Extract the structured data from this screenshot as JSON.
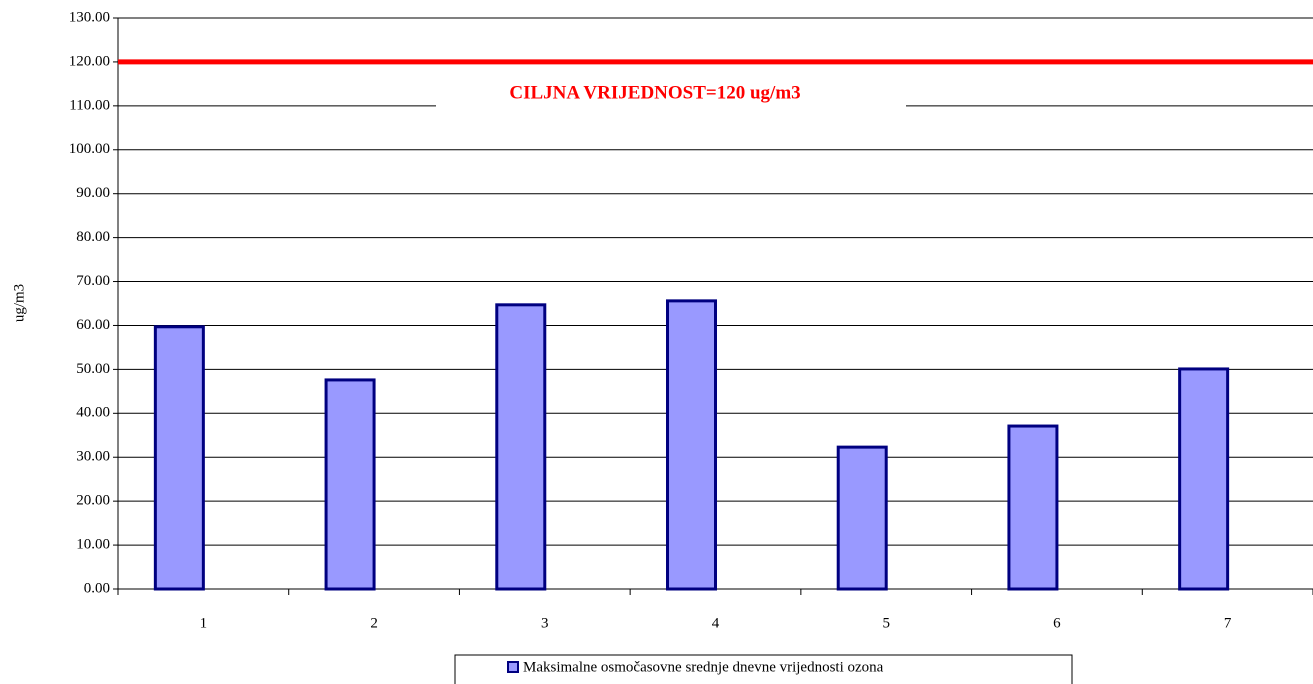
{
  "chart_data": {
    "type": "bar",
    "y_label": "ug/m3",
    "categories": [
      "1",
      "2",
      "3",
      "4",
      "5",
      "6",
      "7"
    ],
    "series": [
      {
        "name": "Maksimalne osmočasovne srednje dnevne vrijednosti ozona",
        "color": "#9999ff",
        "edge_color": "#000080",
        "values": [
          59.7,
          47.6,
          64.7,
          65.6,
          32.3,
          37.1,
          50.1
        ]
      }
    ],
    "target": {
      "value": 120,
      "label": "CILJNA VRIJEDNOST=120 ug/m3",
      "color": "#ff0000"
    },
    "ylim": [
      0,
      130
    ],
    "yticks": [
      {
        "value": 0,
        "label": "0.00"
      },
      {
        "value": 10,
        "label": "10.00"
      },
      {
        "value": 20,
        "label": "20.00"
      },
      {
        "value": 30,
        "label": "30.00"
      },
      {
        "value": 40,
        "label": "40.00"
      },
      {
        "value": 50,
        "label": "50.00"
      },
      {
        "value": 60,
        "label": "60.00"
      },
      {
        "value": 70,
        "label": "70.00"
      },
      {
        "value": 80,
        "label": "80.00"
      },
      {
        "value": 90,
        "label": "90.00"
      },
      {
        "value": 100,
        "label": "100.00"
      },
      {
        "value": 110,
        "label": "110.00"
      },
      {
        "value": 120,
        "label": "120.00"
      },
      {
        "value": 130,
        "label": "130.00"
      }
    ],
    "grid": true
  }
}
